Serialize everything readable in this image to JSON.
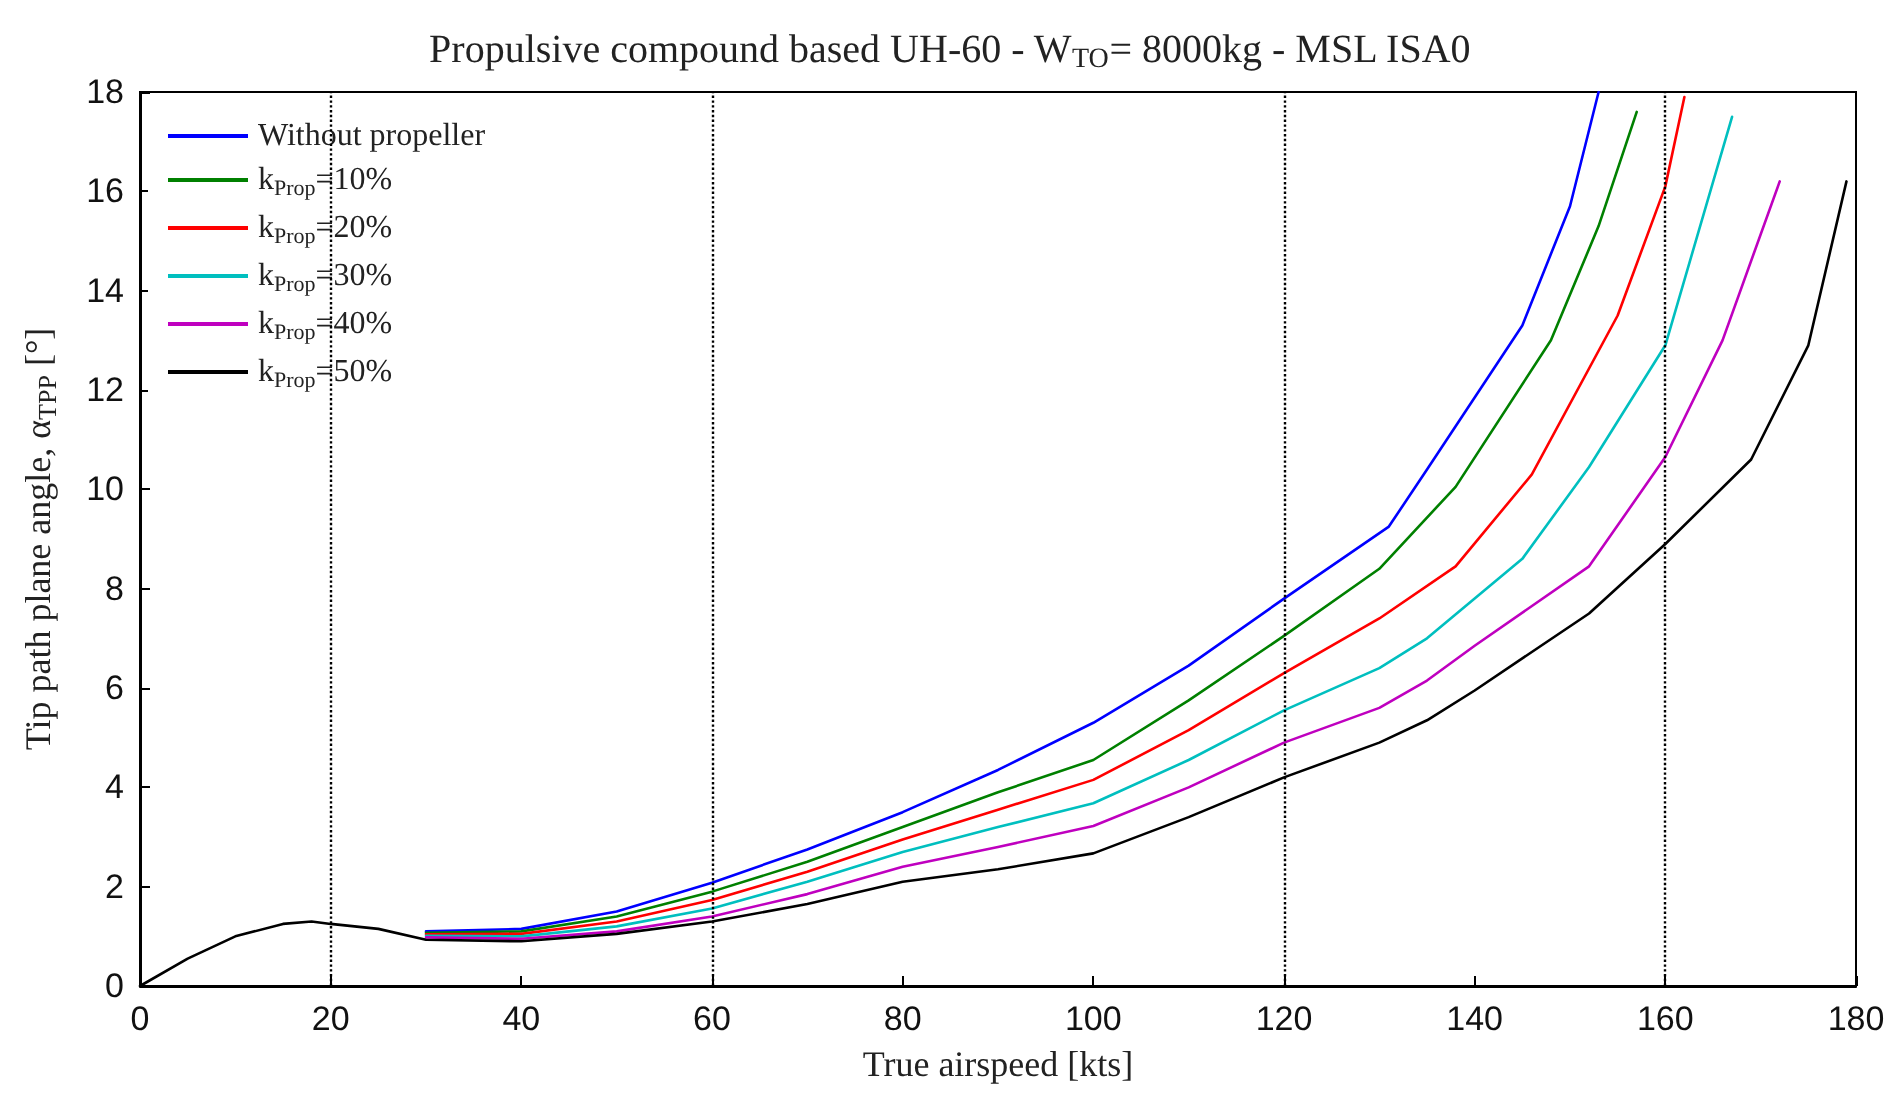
{
  "chart_data": {
    "type": "line",
    "title": "Propulsive compound based UH-60 - W$_{TO}$= 8000kg - MSL ISA0",
    "xlabel": "True airspeed [kts]",
    "ylabel": "Tip path plane angle, α$_{TPP}$ [°]",
    "xlim": [
      0,
      180
    ],
    "xticks": [
      0,
      20,
      40,
      60,
      80,
      100,
      120,
      140,
      160,
      180
    ],
    "ylim": [
      0,
      18
    ],
    "yticks": [
      0,
      2,
      4,
      6,
      8,
      10,
      12,
      14,
      16,
      18
    ],
    "grid": false,
    "legend": "top left",
    "marker": "none",
    "line_style": "solid",
    "ref_lines": [
      {
        "axis": "x",
        "value": 20,
        "label": null,
        "color": "#000000",
        "line_style": "dotted"
      },
      {
        "axis": "x",
        "value": 60,
        "label": null,
        "color": "#000000",
        "line_style": "dotted"
      },
      {
        "axis": "x",
        "value": 120,
        "label": null,
        "color": "#000000",
        "line_style": "dotted"
      },
      {
        "axis": "x",
        "value": 160,
        "label": null,
        "color": "#000000",
        "line_style": "dotted"
      }
    ],
    "series": [
      {
        "name": "Without propeller",
        "color": "#0000ff",
        "x": [
          30,
          40,
          50,
          60,
          70,
          80,
          90,
          100,
          110,
          120,
          131,
          135,
          145,
          150,
          153
        ],
        "values": [
          1.1,
          1.15,
          1.5,
          2.08,
          2.75,
          3.5,
          4.35,
          5.3,
          6.45,
          7.8,
          9.25,
          10.4,
          13.3,
          15.7,
          18
        ]
      },
      {
        "name": "k$_{Prop}$=10%",
        "color": "#008000",
        "x": [
          30,
          40,
          50,
          60,
          70,
          80,
          90,
          100,
          110,
          120,
          130,
          138,
          148,
          153,
          157
        ],
        "values": [
          1.07,
          1.1,
          1.4,
          1.9,
          2.5,
          3.2,
          3.9,
          4.55,
          5.75,
          7.05,
          8.4,
          10.05,
          13.0,
          15.3,
          17.6
        ]
      },
      {
        "name": "k$_{Prop}$=20%",
        "color": "#ff0000",
        "x": [
          30,
          40,
          50,
          60,
          70,
          80,
          90,
          100,
          110,
          120,
          130,
          138,
          146,
          155,
          160,
          162
        ],
        "values": [
          1.04,
          1.05,
          1.3,
          1.73,
          2.3,
          2.95,
          3.55,
          4.15,
          5.15,
          6.3,
          7.4,
          8.45,
          10.3,
          13.5,
          16.1,
          17.9
        ]
      },
      {
        "name": "k$_{Prop}$=30%",
        "color": "#00bfbf",
        "x": [
          30,
          40,
          50,
          60,
          70,
          80,
          90,
          100,
          110,
          120,
          130,
          135,
          145,
          152,
          160,
          167
        ],
        "values": [
          1.01,
          1.0,
          1.2,
          1.56,
          2.1,
          2.7,
          3.2,
          3.68,
          4.55,
          5.55,
          6.4,
          7.0,
          8.6,
          10.45,
          12.9,
          17.5
        ]
      },
      {
        "name": "k$_{Prop}$=40%",
        "color": "#bf00bf",
        "x": [
          30,
          40,
          50,
          60,
          70,
          80,
          90,
          100,
          110,
          120,
          130,
          135,
          140,
          152,
          160,
          166,
          172
        ],
        "values": [
          0.98,
          0.95,
          1.1,
          1.4,
          1.85,
          2.4,
          2.8,
          3.22,
          4.0,
          4.9,
          5.6,
          6.15,
          6.85,
          8.45,
          10.65,
          13.0,
          16.2
        ]
      },
      {
        "name": "k$_{Prop}$=50%",
        "color": "#000000",
        "x": [
          0,
          5,
          10,
          15,
          18,
          20,
          25,
          30,
          40,
          50,
          60,
          70,
          80,
          90,
          100,
          110,
          120,
          130,
          135,
          140,
          152,
          160,
          169,
          175,
          179
        ],
        "values": [
          0,
          0.55,
          1.0,
          1.25,
          1.3,
          1.25,
          1.15,
          0.93,
          0.9,
          1.05,
          1.3,
          1.65,
          2.1,
          2.35,
          2.67,
          3.4,
          4.2,
          4.9,
          5.35,
          5.95,
          7.5,
          8.9,
          10.6,
          12.9,
          16.2
        ]
      }
    ]
  }
}
